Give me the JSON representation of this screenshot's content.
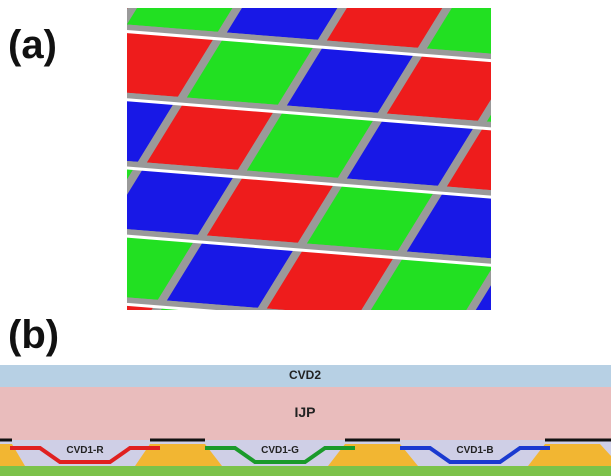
{
  "panels": {
    "a": "(a)",
    "b": "(b)"
  },
  "layers": {
    "cvd2": "CVD2",
    "ijp": "IJP",
    "cvd1_r": "CVD1-R",
    "cvd1_g": "CVD1-G",
    "cvd1_b": "CVD1-B"
  }
}
